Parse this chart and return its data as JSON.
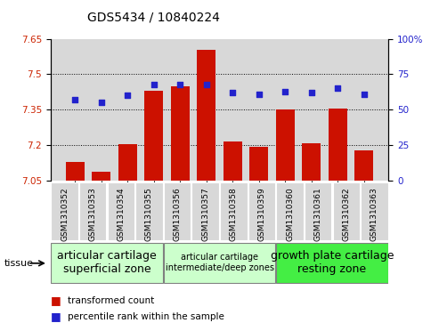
{
  "title": "GDS5434 / 10840224",
  "samples": [
    "GSM1310352",
    "GSM1310353",
    "GSM1310354",
    "GSM1310355",
    "GSM1310356",
    "GSM1310357",
    "GSM1310358",
    "GSM1310359",
    "GSM1310360",
    "GSM1310361",
    "GSM1310362",
    "GSM1310363"
  ],
  "bar_values": [
    7.13,
    7.09,
    7.205,
    7.43,
    7.45,
    7.605,
    7.215,
    7.195,
    7.35,
    7.21,
    7.355,
    7.18
  ],
  "dot_values": [
    57,
    55,
    60,
    68,
    68,
    68,
    62,
    61,
    63,
    62,
    65,
    61
  ],
  "bar_bottom": 7.05,
  "ylim_left": [
    7.05,
    7.65
  ],
  "ylim_right": [
    0,
    100
  ],
  "yticks_left": [
    7.05,
    7.2,
    7.35,
    7.5,
    7.65
  ],
  "yticks_right": [
    0,
    25,
    50,
    75,
    100
  ],
  "ytick_labels_left": [
    "7.05",
    "7.2",
    "7.35",
    "7.5",
    "7.65"
  ],
  "ytick_labels_right": [
    "0",
    "25",
    "50",
    "75",
    "100%"
  ],
  "grid_values": [
    7.2,
    7.35,
    7.5
  ],
  "bar_color": "#cc1100",
  "dot_color": "#2222cc",
  "tissue_groups": [
    {
      "label": "articular cartilage\nsuperficial zone",
      "start": 0,
      "end": 4,
      "color": "#ccffcc",
      "fontsize": 9
    },
    {
      "label": "articular cartilage\nintermediate/deep zones",
      "start": 4,
      "end": 8,
      "color": "#ccffcc",
      "fontsize": 7
    },
    {
      "label": "growth plate cartilage\nresting zone",
      "start": 8,
      "end": 12,
      "color": "#44ee44",
      "fontsize": 9
    }
  ],
  "tissue_label": "tissue",
  "legend_bar_label": "transformed count",
  "legend_dot_label": "percentile rank within the sample",
  "background_color": "#ffffff",
  "plot_bg_color": "#d8d8d8",
  "xtick_bg_color": "#d8d8d8"
}
